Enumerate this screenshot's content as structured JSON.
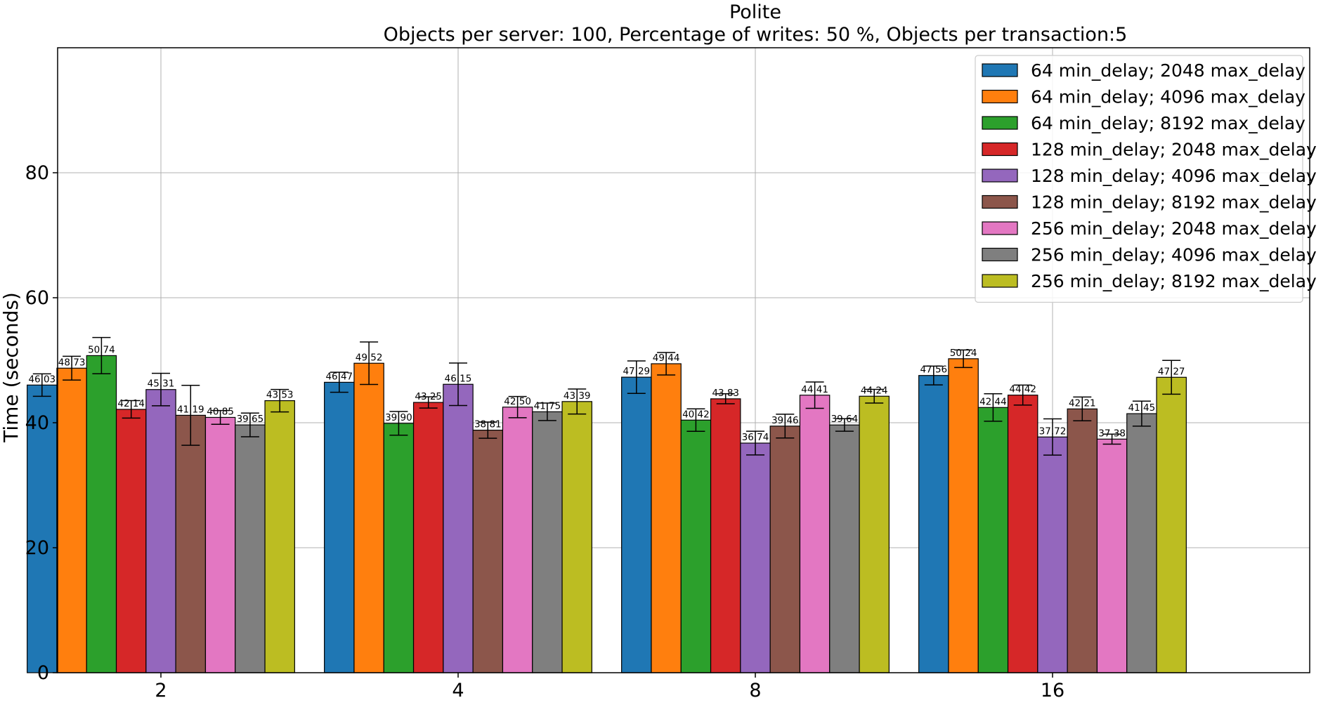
{
  "chart_data": {
    "type": "bar",
    "title": "Polite",
    "subtitle": "Objects per server: 100, Percentage of writes: 50 %, Objects per transaction:5",
    "xlabel": "",
    "ylabel": "Time (seconds)",
    "ylim": [
      0,
      100
    ],
    "yticks": [
      0,
      20,
      40,
      60,
      80
    ],
    "grid": true,
    "legend_position": "top-right",
    "categories": [
      "2",
      "4",
      "8",
      "16"
    ],
    "series": [
      {
        "name": "64 min_delay; 2048 max_delay",
        "color": "#1f77b4",
        "values": [
          46.03,
          46.47,
          47.29,
          47.56
        ],
        "errors": [
          1.8,
          1.6,
          2.6,
          1.5
        ],
        "labels": [
          "46.03",
          "46.47",
          "47.29",
          "47.56"
        ]
      },
      {
        "name": "64 min_delay; 4096 max_delay",
        "color": "#ff7f0e",
        "values": [
          48.73,
          49.52,
          49.44,
          50.24
        ],
        "errors": [
          1.9,
          3.4,
          1.8,
          1.4
        ],
        "labels": [
          "48.73",
          "49.52",
          "49.44",
          "50.24"
        ]
      },
      {
        "name": "64 min_delay; 8192 max_delay",
        "color": "#2ca02c",
        "values": [
          50.74,
          39.9,
          40.42,
          42.44
        ],
        "errors": [
          2.9,
          1.9,
          1.8,
          2.2
        ],
        "labels": [
          "50.74",
          "39.90",
          "40.42",
          "42.44"
        ]
      },
      {
        "name": "128 min_delay; 2048 max_delay",
        "color": "#d62728",
        "values": [
          42.14,
          43.25,
          43.83,
          44.42
        ],
        "errors": [
          1.4,
          0.9,
          0.8,
          1.6
        ],
        "labels": [
          "42.14",
          "43.25",
          "43.83",
          "44.42"
        ]
      },
      {
        "name": "128 min_delay; 4096 max_delay",
        "color": "#9467bd",
        "values": [
          45.31,
          46.15,
          36.74,
          37.72
        ],
        "errors": [
          2.6,
          3.4,
          1.9,
          2.9
        ],
        "labels": [
          "45.31",
          "46.15",
          "36.74",
          "37.72"
        ]
      },
      {
        "name": "128 min_delay; 8192 max_delay",
        "color": "#8c564b",
        "values": [
          41.19,
          38.81,
          39.46,
          42.21
        ],
        "errors": [
          4.8,
          1.3,
          1.9,
          1.9
        ],
        "labels": [
          "41.19",
          "38.81",
          "39.46",
          "42.21"
        ]
      },
      {
        "name": "256 min_delay; 2048 max_delay",
        "color": "#e377c2",
        "values": [
          40.85,
          42.5,
          44.41,
          37.38
        ],
        "errors": [
          1.1,
          1.7,
          2.1,
          0.8
        ],
        "labels": [
          "40.85",
          "42.50",
          "44.41",
          "37.38"
        ]
      },
      {
        "name": "256 min_delay; 4096 max_delay",
        "color": "#7f7f7f",
        "values": [
          39.65,
          41.75,
          39.64,
          41.45
        ],
        "errors": [
          1.9,
          1.4,
          1.0,
          2.0
        ],
        "labels": [
          "39.65",
          "41.75",
          "39.64",
          "41.45"
        ]
      },
      {
        "name": "256 min_delay; 8192 max_delay",
        "color": "#bcbd22",
        "values": [
          43.53,
          43.39,
          44.24,
          47.27
        ],
        "errors": [
          1.8,
          2.0,
          1.1,
          2.7
        ],
        "labels": [
          "43.53",
          "43.39",
          "44.24",
          "47.27"
        ]
      }
    ]
  }
}
